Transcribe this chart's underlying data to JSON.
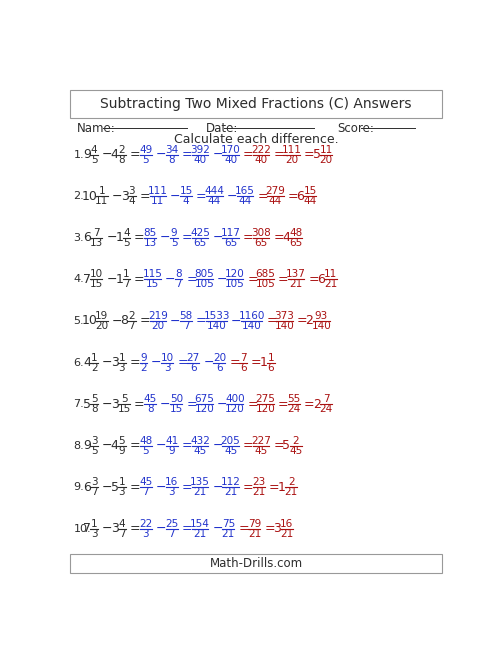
{
  "title": "Subtracting Two Mixed Fractions (C) Answers",
  "instruction": "Calculate each difference.",
  "name_label": "Name:",
  "date_label": "Date:",
  "score_label": "Score:",
  "footer": "Math-Drills.com",
  "bg_color": "#ffffff",
  "dark_color": "#2d2d2d",
  "blue_color": "#2233cc",
  "red_color": "#aa1111",
  "problems": [
    {
      "num": "1.",
      "w1": "9",
      "n1": "4",
      "d1": "5",
      "w2": "4",
      "n2": "2",
      "d2": "8",
      "in1": "49",
      "id1": "5",
      "in2": "34",
      "id2": "8",
      "cn1": "392",
      "cd1": "40",
      "cn2": "170",
      "cd2": "40",
      "rn": "222",
      "rd": "40",
      "fn": "111",
      "fd": "20",
      "fw": "5",
      "fnn": "11",
      "fdd": "20",
      "has_simplified": true
    },
    {
      "num": "2.",
      "w1": "10",
      "n1": "1",
      "d1": "11",
      "w2": "3",
      "n2": "3",
      "d2": "4",
      "in1": "111",
      "id1": "11",
      "in2": "15",
      "id2": "4",
      "cn1": "444",
      "cd1": "44",
      "cn2": "165",
      "cd2": "44",
      "rn": "279",
      "rd": "44",
      "fn": "",
      "fd": "",
      "fw": "6",
      "fnn": "15",
      "fdd": "44",
      "has_simplified": false
    },
    {
      "num": "3.",
      "w1": "6",
      "n1": "7",
      "d1": "13",
      "w2": "1",
      "n2": "4",
      "d2": "5",
      "in1": "85",
      "id1": "13",
      "in2": "9",
      "id2": "5",
      "cn1": "425",
      "cd1": "65",
      "cn2": "117",
      "cd2": "65",
      "rn": "308",
      "rd": "65",
      "fn": "",
      "fd": "",
      "fw": "4",
      "fnn": "48",
      "fdd": "65",
      "has_simplified": false
    },
    {
      "num": "4.",
      "w1": "7",
      "n1": "10",
      "d1": "15",
      "w2": "1",
      "n2": "1",
      "d2": "7",
      "in1": "115",
      "id1": "15",
      "in2": "8",
      "id2": "7",
      "cn1": "805",
      "cd1": "105",
      "cn2": "120",
      "cd2": "105",
      "rn": "685",
      "rd": "105",
      "fn": "137",
      "fd": "21",
      "fw": "6",
      "fnn": "11",
      "fdd": "21",
      "has_simplified": true
    },
    {
      "num": "5.",
      "w1": "10",
      "n1": "19",
      "d1": "20",
      "w2": "8",
      "n2": "2",
      "d2": "7",
      "in1": "219",
      "id1": "20",
      "in2": "58",
      "id2": "7",
      "cn1": "1533",
      "cd1": "140",
      "cn2": "1160",
      "cd2": "140",
      "rn": "373",
      "rd": "140",
      "fn": "",
      "fd": "",
      "fw": "2",
      "fnn": "93",
      "fdd": "140",
      "has_simplified": false
    },
    {
      "num": "6.",
      "w1": "4",
      "n1": "1",
      "d1": "2",
      "w2": "3",
      "n2": "1",
      "d2": "3",
      "in1": "9",
      "id1": "2",
      "in2": "10",
      "id2": "3",
      "cn1": "27",
      "cd1": "6",
      "cn2": "20",
      "cd2": "6",
      "rn": "7",
      "rd": "6",
      "fn": "",
      "fd": "",
      "fw": "1",
      "fnn": "1",
      "fdd": "6",
      "has_simplified": false
    },
    {
      "num": "7.",
      "w1": "5",
      "n1": "5",
      "d1": "8",
      "w2": "3",
      "n2": "5",
      "d2": "15",
      "in1": "45",
      "id1": "8",
      "in2": "50",
      "id2": "15",
      "cn1": "675",
      "cd1": "120",
      "cn2": "400",
      "cd2": "120",
      "rn": "275",
      "rd": "120",
      "fn": "55",
      "fd": "24",
      "fw": "2",
      "fnn": "7",
      "fdd": "24",
      "has_simplified": true
    },
    {
      "num": "8.",
      "w1": "9",
      "n1": "3",
      "d1": "5",
      "w2": "4",
      "n2": "5",
      "d2": "9",
      "in1": "48",
      "id1": "5",
      "in2": "41",
      "id2": "9",
      "cn1": "432",
      "cd1": "45",
      "cn2": "205",
      "cd2": "45",
      "rn": "227",
      "rd": "45",
      "fn": "",
      "fd": "",
      "fw": "5",
      "fnn": "2",
      "fdd": "45",
      "has_simplified": false
    },
    {
      "num": "9.",
      "w1": "6",
      "n1": "3",
      "d1": "7",
      "w2": "5",
      "n2": "1",
      "d2": "3",
      "in1": "45",
      "id1": "7",
      "in2": "16",
      "id2": "3",
      "cn1": "135",
      "cd1": "21",
      "cn2": "112",
      "cd2": "21",
      "rn": "23",
      "rd": "21",
      "fn": "",
      "fd": "",
      "fw": "1",
      "fnn": "2",
      "fdd": "21",
      "has_simplified": false
    },
    {
      "num": "10.",
      "w1": "7",
      "n1": "1",
      "d1": "3",
      "w2": "3",
      "n2": "4",
      "d2": "7",
      "in1": "22",
      "id1": "3",
      "in2": "25",
      "id2": "7",
      "cn1": "154",
      "cd1": "21",
      "cn2": "75",
      "cd2": "21",
      "rn": "79",
      "rd": "21",
      "fn": "",
      "fd": "",
      "fw": "3",
      "fnn": "16",
      "fdd": "21",
      "has_simplified": false
    }
  ]
}
